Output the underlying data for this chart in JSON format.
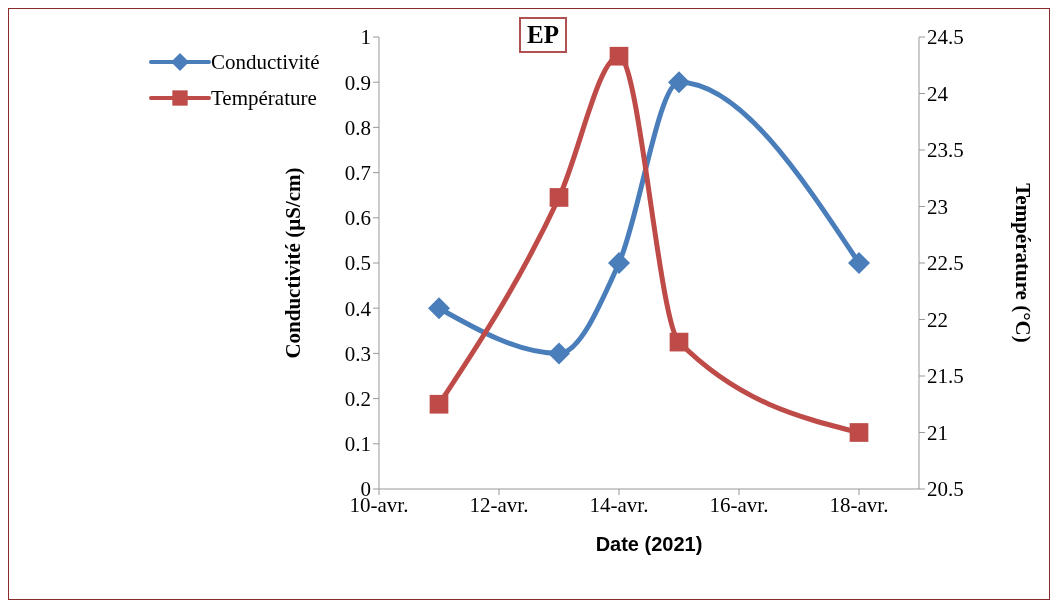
{
  "chart_data": {
    "type": "line",
    "title": "EP",
    "xlabel": "Date (2021)",
    "ylabel": "Conductivité (µS/cm)",
    "y2label": "Température (°C)",
    "x": [
      "--04-11",
      "--04-13",
      "--04-14",
      "--04-15",
      "--04-18"
    ],
    "series": [
      {
        "name": "Conductivité",
        "color": "#4a7ebb",
        "values": [
          0.4,
          0.3,
          0.5,
          0.9,
          0.5
        ],
        "marker": "diamond"
      },
      {
        "name": "Température",
        "color": "#be4b48",
        "values": [
          21.25,
          23.08,
          24.33,
          21.8,
          21.0
        ],
        "marker": "square",
        "axis": "y2"
      }
    ],
    "xlim": [
      "--04-10",
      "--04-19"
    ],
    "xticks": [
      {
        "value": "--04-10",
        "label": "10-avr."
      },
      {
        "value": "--04-12",
        "label": "12-avr."
      },
      {
        "value": "--04-14",
        "label": "14-avr."
      },
      {
        "value": "--04-16",
        "label": "16-avr."
      },
      {
        "value": "--04-18",
        "label": "18-avr."
      }
    ],
    "ylim": [
      0,
      1
    ],
    "yticks": [
      0,
      0.1,
      0.2,
      0.3,
      0.4,
      0.5,
      0.6,
      0.7,
      0.8,
      0.9,
      1
    ],
    "y2lim": [
      20.5,
      24.5
    ],
    "y2ticks": [
      20.5,
      21,
      21.5,
      22,
      22.5,
      23,
      23.5,
      24,
      24.5
    ],
    "grid": false,
    "legend": "top left",
    "line_style": "solid"
  }
}
